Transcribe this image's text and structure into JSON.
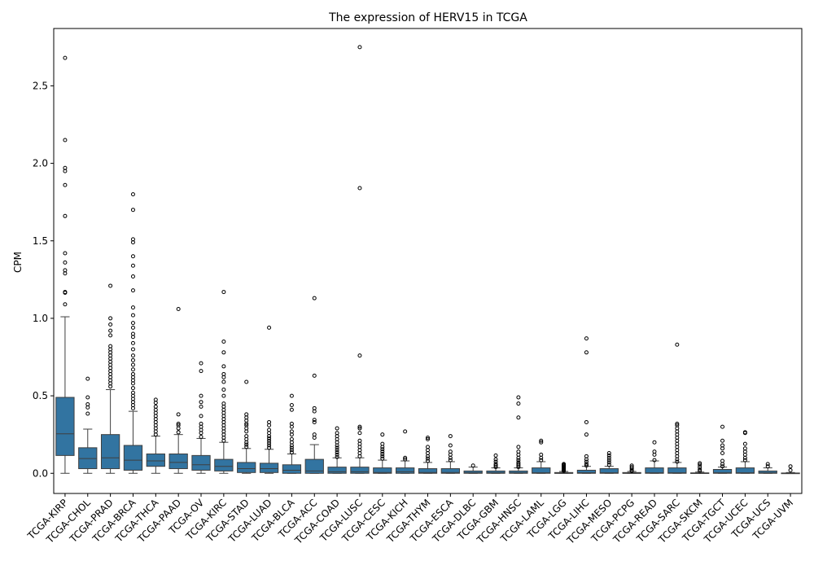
{
  "chart_data": {
    "type": "box",
    "title": "The expression of HERV15 in TCGA",
    "xlabel": "",
    "ylabel": "CPM",
    "ylim": [
      -0.13,
      2.87
    ],
    "yticks": [
      0.0,
      0.5,
      1.0,
      1.5,
      2.0,
      2.5
    ],
    "ytick_labels": [
      "0.0",
      "0.5",
      "1.0",
      "1.5",
      "2.0",
      "2.5"
    ],
    "box_color": "#3274a1",
    "grid": false,
    "categories": [
      "TCGA-KIRP",
      "TCGA-CHOL",
      "TCGA-PRAD",
      "TCGA-BRCA",
      "TCGA-THCA",
      "TCGA-PAAD",
      "TCGA-OV",
      "TCGA-KIRC",
      "TCGA-STAD",
      "TCGA-LUAD",
      "TCGA-BLCA",
      "TCGA-ACC",
      "TCGA-COAD",
      "TCGA-LUSC",
      "TCGA-CESC",
      "TCGA-KICH",
      "TCGA-THYM",
      "TCGA-ESCA",
      "TCGA-DLBC",
      "TCGA-GBM",
      "TCGA-HNSC",
      "TCGA-LAML",
      "TCGA-LGG",
      "TCGA-LIHC",
      "TCGA-MESO",
      "TCGA-PCPG",
      "TCGA-READ",
      "TCGA-SARC",
      "TCGA-SKCM",
      "TCGA-TGCT",
      "TCGA-UCEC",
      "TCGA-UCS",
      "TCGA-UVM"
    ],
    "boxes": [
      {
        "min": 0.0,
        "q1": 0.115,
        "median": 0.255,
        "q3": 0.49,
        "max": 1.01,
        "outliers": [
          1.09,
          1.165,
          1.17,
          1.29,
          1.31,
          1.36,
          1.42,
          1.66,
          1.86,
          1.95,
          1.97,
          2.15,
          2.68
        ]
      },
      {
        "min": 0.0,
        "q1": 0.03,
        "median": 0.095,
        "q3": 0.165,
        "max": 0.285,
        "outliers": [
          0.385,
          0.425,
          0.445,
          0.49,
          0.61
        ]
      },
      {
        "min": 0.0,
        "q1": 0.03,
        "median": 0.1,
        "q3": 0.25,
        "max": 0.54,
        "outliers": [
          0.56,
          0.58,
          0.6,
          0.62,
          0.64,
          0.66,
          0.68,
          0.7,
          0.72,
          0.74,
          0.76,
          0.78,
          0.8,
          0.82,
          0.89,
          0.92,
          0.96,
          1.0,
          1.21
        ]
      },
      {
        "min": 0.0,
        "q1": 0.02,
        "median": 0.085,
        "q3": 0.18,
        "max": 0.4,
        "outliers": [
          0.42,
          0.44,
          0.46,
          0.48,
          0.5,
          0.52,
          0.55,
          0.58,
          0.6,
          0.62,
          0.64,
          0.67,
          0.7,
          0.73,
          0.76,
          0.8,
          0.84,
          0.88,
          0.9,
          0.94,
          0.97,
          1.02,
          1.07,
          1.18,
          1.27,
          1.34,
          1.4,
          1.49,
          1.51,
          1.7,
          1.8
        ]
      },
      {
        "min": 0.0,
        "q1": 0.045,
        "median": 0.08,
        "q3": 0.125,
        "max": 0.24,
        "outliers": [
          0.25,
          0.27,
          0.29,
          0.31,
          0.33,
          0.35,
          0.37,
          0.39,
          0.41,
          0.43,
          0.455,
          0.475
        ]
      },
      {
        "min": 0.0,
        "q1": 0.03,
        "median": 0.07,
        "q3": 0.125,
        "max": 0.25,
        "outliers": [
          0.265,
          0.29,
          0.31,
          0.32,
          0.38,
          1.06
        ]
      },
      {
        "min": 0.0,
        "q1": 0.02,
        "median": 0.055,
        "q3": 0.115,
        "max": 0.225,
        "outliers": [
          0.235,
          0.26,
          0.28,
          0.3,
          0.32,
          0.37,
          0.43,
          0.46,
          0.5,
          0.66,
          0.71
        ]
      },
      {
        "min": 0.0,
        "q1": 0.015,
        "median": 0.045,
        "q3": 0.09,
        "max": 0.2,
        "outliers": [
          0.21,
          0.23,
          0.25,
          0.27,
          0.29,
          0.31,
          0.33,
          0.35,
          0.37,
          0.39,
          0.41,
          0.43,
          0.45,
          0.5,
          0.54,
          0.59,
          0.62,
          0.64,
          0.69,
          0.78,
          0.85,
          1.17
        ]
      },
      {
        "min": 0.0,
        "q1": 0.005,
        "median": 0.03,
        "q3": 0.07,
        "max": 0.16,
        "outliers": [
          0.17,
          0.185,
          0.2,
          0.22,
          0.24,
          0.27,
          0.29,
          0.31,
          0.32,
          0.34,
          0.36,
          0.38,
          0.59
        ]
      },
      {
        "min": 0.0,
        "q1": 0.005,
        "median": 0.03,
        "q3": 0.065,
        "max": 0.155,
        "outliers": [
          0.165,
          0.18,
          0.195,
          0.21,
          0.225,
          0.24,
          0.26,
          0.28,
          0.31,
          0.33,
          0.94
        ]
      },
      {
        "min": 0.0,
        "q1": 0.0,
        "median": 0.02,
        "q3": 0.055,
        "max": 0.125,
        "outliers": [
          0.135,
          0.15,
          0.165,
          0.18,
          0.2,
          0.22,
          0.25,
          0.27,
          0.3,
          0.32,
          0.41,
          0.44,
          0.5
        ]
      },
      {
        "min": 0.0,
        "q1": 0.0,
        "median": 0.015,
        "q3": 0.09,
        "max": 0.185,
        "outliers": [
          0.23,
          0.25,
          0.33,
          0.345,
          0.4,
          0.42,
          0.63,
          1.13
        ]
      },
      {
        "min": 0.0,
        "q1": 0.0,
        "median": 0.01,
        "q3": 0.04,
        "max": 0.1,
        "outliers": [
          0.105,
          0.12,
          0.135,
          0.15,
          0.165,
          0.18,
          0.2,
          0.22,
          0.24,
          0.26,
          0.29
        ]
      },
      {
        "min": 0.0,
        "q1": 0.0,
        "median": 0.01,
        "q3": 0.04,
        "max": 0.1,
        "outliers": [
          0.11,
          0.13,
          0.15,
          0.17,
          0.19,
          0.21,
          0.26,
          0.29,
          0.3,
          0.76,
          1.84,
          2.75
        ]
      },
      {
        "min": 0.0,
        "q1": 0.0,
        "median": 0.005,
        "q3": 0.035,
        "max": 0.085,
        "outliers": [
          0.095,
          0.11,
          0.125,
          0.14,
          0.155,
          0.17,
          0.19,
          0.25
        ]
      },
      {
        "min": 0.0,
        "q1": 0.0,
        "median": 0.01,
        "q3": 0.035,
        "max": 0.08,
        "outliers": [
          0.09,
          0.1,
          0.27
        ]
      },
      {
        "min": 0.0,
        "q1": 0.0,
        "median": 0.005,
        "q3": 0.03,
        "max": 0.07,
        "outliers": [
          0.08,
          0.095,
          0.11,
          0.13,
          0.15,
          0.17,
          0.22,
          0.23
        ]
      },
      {
        "min": 0.0,
        "q1": 0.0,
        "median": 0.005,
        "q3": 0.03,
        "max": 0.075,
        "outliers": [
          0.085,
          0.1,
          0.12,
          0.14,
          0.18,
          0.24
        ]
      },
      {
        "min": 0.0,
        "q1": 0.0,
        "median": 0.003,
        "q3": 0.015,
        "max": 0.04,
        "outliers": [
          0.05
        ]
      },
      {
        "min": 0.0,
        "q1": 0.0,
        "median": 0.003,
        "q3": 0.015,
        "max": 0.035,
        "outliers": [
          0.04,
          0.05,
          0.06,
          0.075,
          0.09,
          0.115
        ]
      },
      {
        "min": 0.0,
        "q1": 0.0,
        "median": 0.003,
        "q3": 0.015,
        "max": 0.035,
        "outliers": [
          0.04,
          0.05,
          0.06,
          0.07,
          0.085,
          0.1,
          0.12,
          0.14,
          0.17,
          0.36,
          0.45,
          0.49
        ]
      },
      {
        "min": 0.0,
        "q1": 0.0,
        "median": 0.003,
        "q3": 0.035,
        "max": 0.075,
        "outliers": [
          0.085,
          0.1,
          0.12,
          0.2,
          0.21
        ]
      },
      {
        "min": 0.0,
        "q1": 0.0,
        "median": 0.0,
        "q3": 0.005,
        "max": 0.012,
        "outliers": [
          0.015,
          0.02,
          0.025,
          0.03,
          0.035,
          0.04,
          0.045,
          0.05,
          0.055,
          0.06
        ]
      },
      {
        "min": 0.0,
        "q1": 0.0,
        "median": 0.003,
        "q3": 0.02,
        "max": 0.045,
        "outliers": [
          0.05,
          0.06,
          0.075,
          0.09,
          0.11,
          0.25,
          0.33,
          0.78,
          0.87
        ]
      },
      {
        "min": 0.0,
        "q1": 0.0,
        "median": 0.003,
        "q3": 0.03,
        "max": 0.045,
        "outliers": [
          0.055,
          0.07,
          0.085,
          0.1,
          0.115,
          0.13
        ]
      },
      {
        "min": 0.0,
        "q1": 0.0,
        "median": 0.0,
        "q3": 0.005,
        "max": 0.012,
        "outliers": [
          0.015,
          0.02,
          0.03,
          0.04,
          0.05
        ]
      },
      {
        "min": 0.0,
        "q1": 0.0,
        "median": 0.003,
        "q3": 0.035,
        "max": 0.08,
        "outliers": [
          0.085,
          0.12,
          0.14,
          0.2
        ]
      },
      {
        "min": 0.0,
        "q1": 0.0,
        "median": 0.003,
        "q3": 0.035,
        "max": 0.07,
        "outliers": [
          0.075,
          0.09,
          0.11,
          0.13,
          0.15,
          0.17,
          0.19,
          0.21,
          0.23,
          0.25,
          0.27,
          0.29,
          0.31,
          0.32,
          0.83
        ]
      },
      {
        "min": 0.0,
        "q1": 0.0,
        "median": 0.0,
        "q3": 0.003,
        "max": 0.008,
        "outliers": [
          0.015,
          0.025,
          0.04,
          0.055,
          0.065
        ]
      },
      {
        "min": 0.0,
        "q1": 0.0,
        "median": 0.003,
        "q3": 0.025,
        "max": 0.04,
        "outliers": [
          0.045,
          0.06,
          0.08,
          0.13,
          0.16,
          0.18,
          0.21,
          0.3
        ]
      },
      {
        "min": 0.0,
        "q1": 0.0,
        "median": 0.003,
        "q3": 0.035,
        "max": 0.075,
        "outliers": [
          0.085,
          0.1,
          0.12,
          0.14,
          0.16,
          0.19,
          0.26,
          0.265
        ]
      },
      {
        "min": 0.0,
        "q1": 0.0,
        "median": 0.003,
        "q3": 0.015,
        "max": 0.035,
        "outliers": [
          0.045,
          0.06
        ]
      },
      {
        "min": 0.0,
        "q1": 0.0,
        "median": 0.0,
        "q3": 0.002,
        "max": 0.005,
        "outliers": [
          0.02,
          0.045
        ]
      }
    ]
  }
}
